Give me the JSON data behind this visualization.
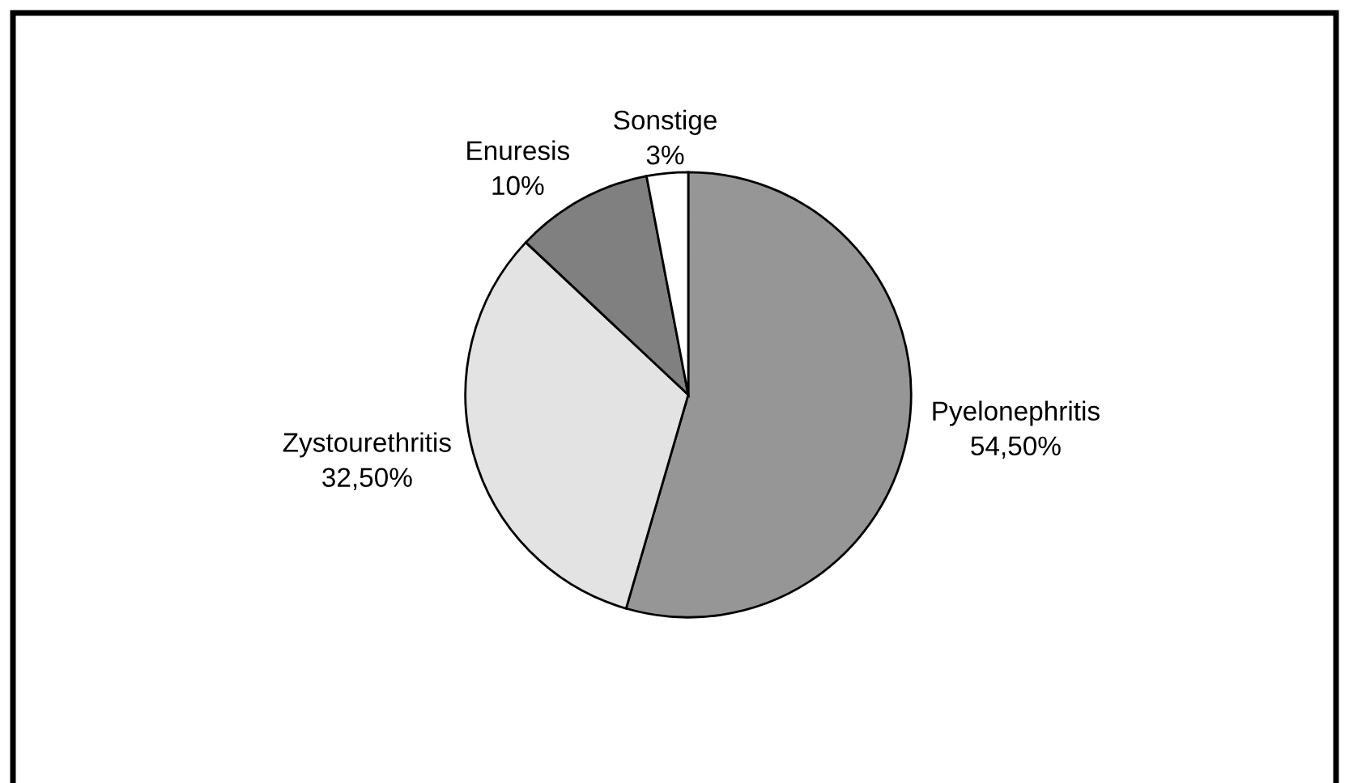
{
  "chart_data": {
    "type": "pie",
    "categories": [
      "Pyelonephritis",
      "Zystourethritis",
      "Enuresis",
      "Sonstige"
    ],
    "values": [
      54.5,
      32.5,
      10,
      3
    ],
    "value_labels": [
      "54,50%",
      "32,50%",
      "10%",
      "3%"
    ],
    "colors": [
      "#969696",
      "#e3e3e3",
      "#808080",
      "#ffffff"
    ]
  }
}
